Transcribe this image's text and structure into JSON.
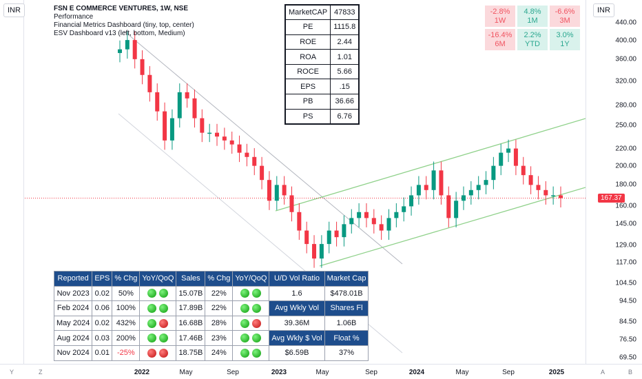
{
  "scale": {
    "currency": "INR"
  },
  "legend": {
    "title": "FSN E COMMERCE VENTURES, 1W, NSE",
    "lines": [
      "Performance",
      "Financial Metrics Dashboard (tiny, top, center)",
      "ESV Dashboard v13 (left, bottom, Medium)"
    ]
  },
  "metrics": [
    {
      "key": "MarketCAP",
      "value": "47833"
    },
    {
      "key": "PE",
      "value": "1115.8"
    },
    {
      "key": "ROE",
      "value": "2.44"
    },
    {
      "key": "ROA",
      "value": "1.01"
    },
    {
      "key": "ROCE",
      "value": "5.66"
    },
    {
      "key": "EPS",
      "value": ".15"
    },
    {
      "key": "PB",
      "value": "36.66"
    },
    {
      "key": "PS",
      "value": "6.76"
    }
  ],
  "performance": [
    {
      "pct": "-2.8%",
      "period": "1W",
      "tone": "neg"
    },
    {
      "pct": "4.8%",
      "period": "1M",
      "tone": "pos"
    },
    {
      "pct": "-6.6%",
      "period": "3M",
      "tone": "neg"
    },
    {
      "pct": "-16.4%",
      "period": "6M",
      "tone": "neg"
    },
    {
      "pct": "2.2%",
      "period": "YTD",
      "tone": "pos"
    },
    {
      "pct": "3.0%",
      "period": "1Y",
      "tone": "pos"
    }
  ],
  "y_axis_ticks": [
    "440.00",
    "400.00",
    "360.00",
    "320.00",
    "280.00",
    "250.00",
    "220.00",
    "200.00",
    "180.00",
    "160.00",
    "145.00",
    "129.00",
    "117.00",
    "104.50",
    "94.50",
    "84.50",
    "76.50",
    "69.50"
  ],
  "x_axis_ticks": [
    {
      "label": "2022",
      "bold": true
    },
    {
      "label": "May",
      "bold": false
    },
    {
      "label": "Sep",
      "bold": false
    },
    {
      "label": "2023",
      "bold": true
    },
    {
      "label": "May",
      "bold": false
    },
    {
      "label": "Sep",
      "bold": false
    },
    {
      "label": "2024",
      "bold": true
    },
    {
      "label": "May",
      "bold": false
    },
    {
      "label": "Sep",
      "bold": false
    },
    {
      "label": "2025",
      "bold": true
    }
  ],
  "last_price": "167.37",
  "bottom_corners": {
    "left": "Y",
    "z": "Z",
    "a": "A",
    "b": "B"
  },
  "esv": {
    "headers": [
      "Reported",
      "EPS",
      "% Chg",
      "YoY/QoQ",
      "Sales",
      "% Chg",
      "YoY/QoQ",
      "U/D Vol Ratio",
      "Market Cap"
    ],
    "rows": [
      {
        "reported": "Nov 2023",
        "eps": "0.02",
        "eps_chg": "50%",
        "eps_neg": false,
        "eps_dots": [
          "green",
          "green"
        ],
        "sales": "15.07B",
        "sales_chg": "22%",
        "sales_dots": [
          "green",
          "green"
        ],
        "c1": "1.6",
        "c1_hdr": false,
        "c2": "$478.01B",
        "c2_hdr": false
      },
      {
        "reported": "Feb 2024",
        "eps": "0.06",
        "eps_chg": "100%",
        "eps_neg": false,
        "eps_dots": [
          "green",
          "green"
        ],
        "sales": "17.89B",
        "sales_chg": "22%",
        "sales_dots": [
          "green",
          "green"
        ],
        "c1": "Avg Wkly Vol",
        "c1_hdr": true,
        "c2": "Shares Fl",
        "c2_hdr": true
      },
      {
        "reported": "May 2024",
        "eps": "0.02",
        "eps_chg": "432%",
        "eps_neg": false,
        "eps_dots": [
          "green",
          "red"
        ],
        "sales": "16.68B",
        "sales_chg": "28%",
        "sales_dots": [
          "green",
          "red"
        ],
        "c1": "39.36M",
        "c1_hdr": false,
        "c2": "1.06B",
        "c2_hdr": false
      },
      {
        "reported": "Aug 2024",
        "eps": "0.03",
        "eps_chg": "200%",
        "eps_neg": false,
        "eps_dots": [
          "green",
          "green"
        ],
        "sales": "17.46B",
        "sales_chg": "23%",
        "sales_dots": [
          "green",
          "green"
        ],
        "c1": "Avg Wkly $ Vol",
        "c1_hdr": true,
        "c2": "Float %",
        "c2_hdr": true
      },
      {
        "reported": "Nov 2024",
        "eps": "0.01",
        "eps_chg": "-25%",
        "eps_neg": true,
        "eps_dots": [
          "red",
          "red"
        ],
        "sales": "18.75B",
        "sales_chg": "24%",
        "sales_dots": [
          "green",
          "green"
        ],
        "c1": "$6.59B",
        "c1_hdr": false,
        "c2": "37%",
        "c2_hdr": false
      }
    ]
  },
  "chart_data": {
    "type": "candlestick",
    "series_close_approx": [
      380,
      400,
      360,
      330,
      300,
      270,
      230,
      260,
      300,
      290,
      260,
      240,
      240,
      235,
      230,
      225,
      215,
      210,
      200,
      185,
      165,
      180,
      170,
      155,
      140,
      130,
      120,
      130,
      140,
      135,
      145,
      150,
      155,
      150,
      145,
      140,
      150,
      155,
      160,
      170,
      180,
      175,
      195,
      170,
      150,
      165,
      170,
      175,
      180,
      185,
      200,
      215,
      220,
      200,
      190,
      180,
      175,
      170,
      170,
      167.37
    ],
    "colors": {
      "up": "#089981",
      "down": "#f23645",
      "channel": "#8fd18a",
      "last_price": "#f23645"
    }
  }
}
